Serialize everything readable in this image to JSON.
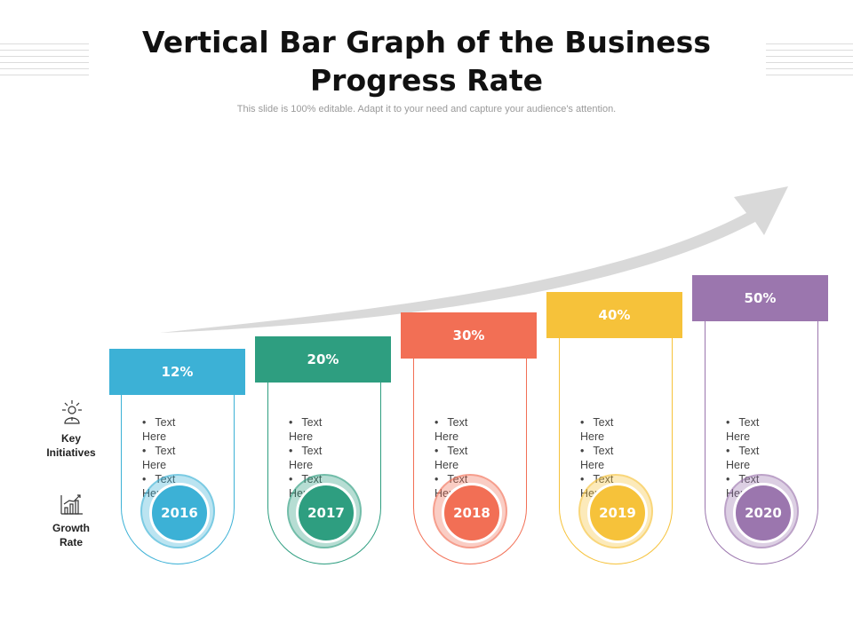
{
  "title": {
    "line1": "Vertical Bar Graph of the Business",
    "line2": "Progress Rate"
  },
  "subtitle": "This slide is 100% editable. Adapt it to your need and capture your audience's attention.",
  "row_labels": {
    "key_initiatives_line1": "Key",
    "key_initiatives_line2": "Initiatives",
    "key_initiatives_icon": "person-ideas-icon",
    "growth_rate_line1": "Growth",
    "growth_rate_line2": "Rate",
    "growth_rate_icon": "bar-chart-growth-icon"
  },
  "columns": [
    {
      "year": "2016",
      "rate": "12%",
      "rate_value": 12,
      "color": "#3cb1d6",
      "bullets": [
        "Text Here",
        "Text Here",
        "Text Here"
      ]
    },
    {
      "year": "2017",
      "rate": "20%",
      "rate_value": 20,
      "color": "#2e9e80",
      "bullets": [
        "Text Here",
        "Text Here",
        "Text Here"
      ]
    },
    {
      "year": "2018",
      "rate": "30%",
      "rate_value": 30,
      "color": "#f26f55",
      "bullets": [
        "Text Here",
        "Text Here",
        "Text Here"
      ]
    },
    {
      "year": "2019",
      "rate": "40%",
      "rate_value": 40,
      "color": "#f6c23a",
      "bullets": [
        "Text Here",
        "Text Here",
        "Text Here"
      ]
    },
    {
      "year": "2020",
      "rate": "50%",
      "rate_value": 50,
      "color": "#9b76ae",
      "bullets": [
        "Text Here",
        "Text Here",
        "Text Here"
      ]
    }
  ],
  "arrow": {
    "icon": "growth-arrow-icon",
    "color": "#d9d9d9"
  }
}
